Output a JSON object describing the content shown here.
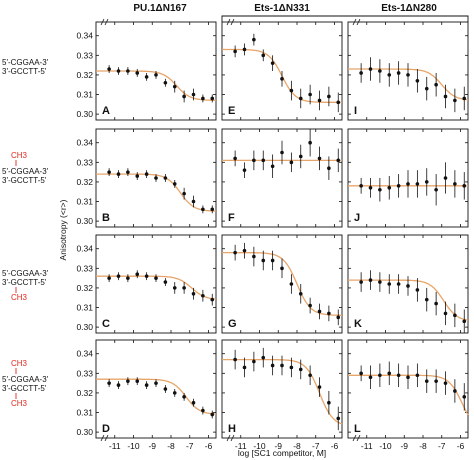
{
  "columns": [
    "PU.1ΔN167",
    "Ets-1ΔN331",
    "Ets-1ΔN280"
  ],
  "ylabel": "Anisotropy (<r>)",
  "xlabel": "log [SC1 competitor, M]",
  "x_ticks": [
    -11,
    -10,
    -9,
    -8,
    -7,
    -6
  ],
  "y_ticks": [
    0.3,
    0.31,
    0.32,
    0.33,
    0.34
  ],
  "dna_rows": [
    {
      "ch3_top": "",
      "top": "5'-CGGAA-3'",
      "bottom": "3'-GCCTT-5'",
      "ch3_bottom": ""
    },
    {
      "ch3_top": "CH3",
      "top": "5'-CGGAA-3'",
      "bottom": "3'-GCCTT-5'",
      "ch3_bottom": ""
    },
    {
      "ch3_top": "",
      "top": "5'-CGGAA-3'",
      "bottom": "3'-GCCTT-5'",
      "ch3_bottom": "CH3"
    },
    {
      "ch3_top": "CH3",
      "top": "5'-CGGAA-3'",
      "bottom": "3'-GCCTT-5'",
      "ch3_bottom": "CH3"
    }
  ],
  "colors": {
    "fit": "#e8a56a",
    "point": "#111111",
    "ch3": "#e0281e"
  },
  "chart_data": [
    {
      "panel": "A",
      "type": "scatter",
      "xlim": [
        -12,
        -5.6
      ],
      "ylim": [
        0.297,
        0.347
      ],
      "fit": [
        0.322,
        0.307,
        -7.7
      ],
      "x": [
        -11.3,
        -10.8,
        -10.3,
        -9.8,
        -9.3,
        -8.8,
        -8.3,
        -7.8,
        -7.3,
        -6.8,
        -6.3,
        -5.8
      ],
      "y": [
        0.323,
        0.322,
        0.322,
        0.321,
        0.319,
        0.32,
        0.316,
        0.314,
        0.309,
        0.31,
        0.308,
        0.308
      ],
      "err": [
        0.002,
        0.002,
        0.002,
        0.002,
        0.002,
        0.002,
        0.002,
        0.003,
        0.003,
        0.003,
        0.002,
        0.002
      ]
    },
    {
      "panel": "B",
      "type": "scatter",
      "xlim": [
        -12,
        -5.6
      ],
      "ylim": [
        0.297,
        0.347
      ],
      "fit": [
        0.324,
        0.305,
        -7.5
      ],
      "x": [
        -11.3,
        -10.8,
        -10.3,
        -9.8,
        -9.3,
        -8.8,
        -8.3,
        -7.8,
        -7.3,
        -6.8,
        -6.3,
        -5.8
      ],
      "y": [
        0.325,
        0.324,
        0.325,
        0.323,
        0.324,
        0.322,
        0.322,
        0.319,
        0.314,
        0.31,
        0.306,
        0.306
      ],
      "err": [
        0.002,
        0.002,
        0.002,
        0.002,
        0.002,
        0.002,
        0.002,
        0.002,
        0.003,
        0.003,
        0.002,
        0.002
      ]
    },
    {
      "panel": "C",
      "type": "scatter",
      "xlim": [
        -12,
        -5.6
      ],
      "ylim": [
        0.297,
        0.347
      ],
      "fit": [
        0.326,
        0.314,
        -6.9
      ],
      "x": [
        -11.3,
        -10.8,
        -10.3,
        -9.8,
        -9.3,
        -8.8,
        -8.3,
        -7.8,
        -7.3,
        -6.8,
        -6.3,
        -5.8
      ],
      "y": [
        0.325,
        0.326,
        0.325,
        0.327,
        0.326,
        0.325,
        0.323,
        0.32,
        0.32,
        0.317,
        0.316,
        0.314
      ],
      "err": [
        0.002,
        0.002,
        0.002,
        0.002,
        0.002,
        0.002,
        0.002,
        0.003,
        0.003,
        0.003,
        0.003,
        0.003
      ]
    },
    {
      "panel": "D",
      "type": "scatter",
      "xlim": [
        -12,
        -5.6
      ],
      "ylim": [
        0.297,
        0.347
      ],
      "fit": [
        0.327,
        0.309,
        -7.2
      ],
      "x": [
        -11.3,
        -10.8,
        -10.3,
        -9.8,
        -9.3,
        -8.8,
        -8.3,
        -7.8,
        -7.3,
        -6.8,
        -6.3,
        -5.8
      ],
      "y": [
        0.325,
        0.324,
        0.326,
        0.326,
        0.324,
        0.325,
        0.322,
        0.32,
        0.318,
        0.315,
        0.311,
        0.309
      ],
      "err": [
        0.002,
        0.002,
        0.002,
        0.002,
        0.002,
        0.002,
        0.002,
        0.002,
        0.002,
        0.002,
        0.002,
        0.002
      ]
    },
    {
      "panel": "E",
      "type": "scatter",
      "xlim": [
        -12,
        -5.6
      ],
      "ylim": [
        0.297,
        0.347
      ],
      "fit": [
        0.333,
        0.306,
        -8.8
      ],
      "x": [
        -11.3,
        -10.8,
        -10.3,
        -9.8,
        -9.3,
        -8.8,
        -8.3,
        -7.8,
        -7.3,
        -6.8,
        -6.3,
        -5.8
      ],
      "y": [
        0.332,
        0.333,
        0.338,
        0.33,
        0.326,
        0.318,
        0.312,
        0.308,
        0.31,
        0.307,
        0.309,
        0.306
      ],
      "err": [
        0.003,
        0.003,
        0.003,
        0.003,
        0.004,
        0.004,
        0.005,
        0.005,
        0.005,
        0.005,
        0.005,
        0.005
      ]
    },
    {
      "panel": "F",
      "type": "scatter",
      "xlim": [
        -12,
        -5.6
      ],
      "ylim": [
        0.297,
        0.347
      ],
      "fit": [
        0.331,
        0.331,
        -8.5
      ],
      "x": [
        -11.3,
        -10.8,
        -10.3,
        -9.8,
        -9.3,
        -8.8,
        -8.3,
        -7.8,
        -7.3,
        -6.8,
        -6.3,
        -5.8
      ],
      "y": [
        0.332,
        0.326,
        0.331,
        0.331,
        0.328,
        0.335,
        0.33,
        0.333,
        0.34,
        0.332,
        0.327,
        0.331
      ],
      "err": [
        0.004,
        0.004,
        0.005,
        0.005,
        0.006,
        0.006,
        0.005,
        0.006,
        0.007,
        0.006,
        0.006,
        0.006
      ]
    },
    {
      "panel": "G",
      "type": "scatter",
      "xlim": [
        -12,
        -5.6
      ],
      "ylim": [
        0.297,
        0.347
      ],
      "fit": [
        0.338,
        0.306,
        -8.0
      ],
      "x": [
        -11.3,
        -10.8,
        -10.3,
        -9.8,
        -9.3,
        -8.8,
        -8.3,
        -7.8,
        -7.3,
        -6.8,
        -6.3,
        -5.8
      ],
      "y": [
        0.338,
        0.339,
        0.336,
        0.334,
        0.334,
        0.33,
        0.322,
        0.317,
        0.311,
        0.308,
        0.307,
        0.305
      ],
      "err": [
        0.004,
        0.004,
        0.005,
        0.005,
        0.005,
        0.005,
        0.005,
        0.005,
        0.004,
        0.004,
        0.004,
        0.004
      ]
    },
    {
      "panel": "H",
      "type": "scatter",
      "xlim": [
        -12,
        -5.6
      ],
      "ylim": [
        0.297,
        0.347
      ],
      "fit": [
        0.337,
        0.303,
        -6.8
      ],
      "x": [
        -11.3,
        -10.8,
        -10.3,
        -9.8,
        -9.3,
        -8.8,
        -8.3,
        -7.8,
        -7.3,
        -6.8,
        -6.3,
        -5.8
      ],
      "y": [
        0.337,
        0.333,
        0.336,
        0.338,
        0.334,
        0.334,
        0.333,
        0.332,
        0.329,
        0.323,
        0.315,
        0.307
      ],
      "err": [
        0.005,
        0.005,
        0.005,
        0.005,
        0.005,
        0.005,
        0.005,
        0.005,
        0.005,
        0.005,
        0.006,
        0.006
      ]
    },
    {
      "panel": "I",
      "type": "scatter",
      "xlim": [
        -12,
        -5.6
      ],
      "ylim": [
        0.297,
        0.347
      ],
      "fit": [
        0.323,
        0.307,
        -7.0
      ],
      "x": [
        -11.3,
        -10.8,
        -10.3,
        -9.8,
        -9.3,
        -8.8,
        -8.3,
        -7.8,
        -7.3,
        -6.8,
        -6.3,
        -5.8
      ],
      "y": [
        0.321,
        0.323,
        0.322,
        0.32,
        0.321,
        0.32,
        0.317,
        0.313,
        0.315,
        0.309,
        0.307,
        0.308
      ],
      "err": [
        0.005,
        0.006,
        0.006,
        0.006,
        0.006,
        0.006,
        0.006,
        0.006,
        0.006,
        0.006,
        0.006,
        0.006
      ]
    },
    {
      "panel": "J",
      "type": "scatter",
      "xlim": [
        -12,
        -5.6
      ],
      "ylim": [
        0.297,
        0.347
      ],
      "fit": [
        0.318,
        0.318,
        -8.5
      ],
      "x": [
        -11.3,
        -10.8,
        -10.3,
        -9.8,
        -9.3,
        -8.8,
        -8.3,
        -7.8,
        -7.3,
        -6.8,
        -6.3,
        -5.8
      ],
      "y": [
        0.318,
        0.317,
        0.316,
        0.317,
        0.318,
        0.319,
        0.319,
        0.32,
        0.316,
        0.322,
        0.319,
        0.318
      ],
      "err": [
        0.004,
        0.005,
        0.006,
        0.006,
        0.006,
        0.007,
        0.007,
        0.007,
        0.008,
        0.008,
        0.007,
        0.007
      ]
    },
    {
      "panel": "K",
      "type": "scatter",
      "xlim": [
        -12,
        -5.6
      ],
      "ylim": [
        0.297,
        0.347
      ],
      "fit": [
        0.324,
        0.303,
        -6.9
      ],
      "x": [
        -11.3,
        -10.8,
        -10.3,
        -9.8,
        -9.3,
        -8.8,
        -8.3,
        -7.8,
        -7.3,
        -6.8,
        -6.3,
        -5.8
      ],
      "y": [
        0.323,
        0.324,
        0.323,
        0.322,
        0.322,
        0.321,
        0.319,
        0.314,
        0.312,
        0.307,
        0.306,
        0.303
      ],
      "err": [
        0.005,
        0.005,
        0.005,
        0.005,
        0.005,
        0.005,
        0.006,
        0.006,
        0.006,
        0.006,
        0.006,
        0.006
      ]
    },
    {
      "panel": "L",
      "type": "scatter",
      "xlim": [
        -12,
        -5.6
      ],
      "ylim": [
        0.297,
        0.347
      ],
      "fit": [
        0.329,
        0.3,
        -5.9
      ],
      "x": [
        -11.3,
        -10.8,
        -10.3,
        -9.8,
        -9.3,
        -8.8,
        -8.3,
        -7.8,
        -7.3,
        -6.8,
        -6.3,
        -5.8
      ],
      "y": [
        0.33,
        0.328,
        0.329,
        0.33,
        0.329,
        0.328,
        0.329,
        0.326,
        0.326,
        0.325,
        0.321,
        0.318
      ],
      "err": [
        0.004,
        0.006,
        0.006,
        0.006,
        0.006,
        0.006,
        0.006,
        0.006,
        0.006,
        0.006,
        0.006,
        0.007
      ]
    }
  ]
}
